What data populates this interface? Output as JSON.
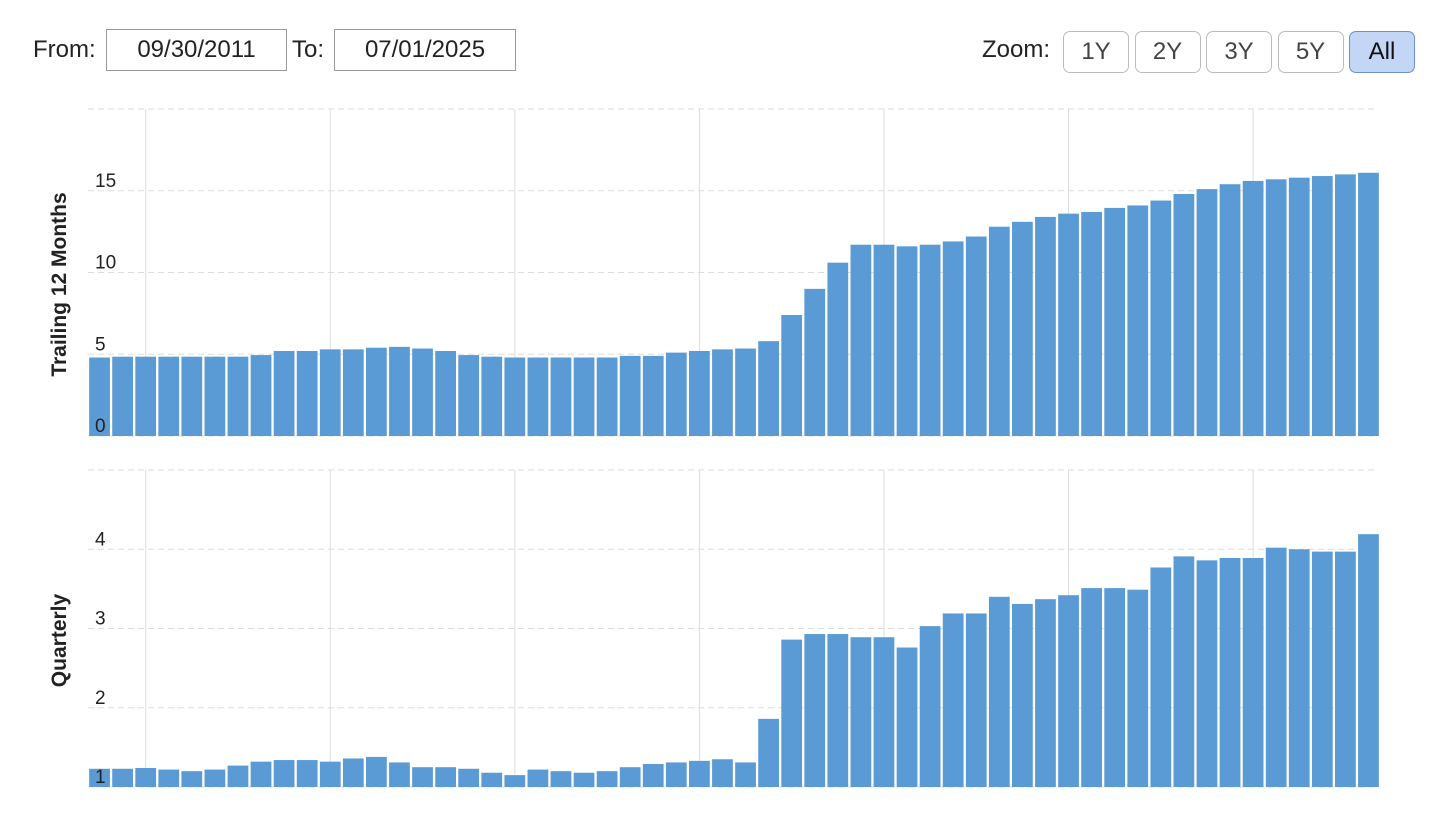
{
  "controls": {
    "from_label": "From:",
    "from_value": "09/30/2011",
    "to_label": "To:",
    "to_value": "07/01/2025",
    "zoom_label": "Zoom:",
    "zoom_buttons": [
      "1Y",
      "2Y",
      "3Y",
      "5Y",
      "All"
    ]
  },
  "chart_data": [
    {
      "type": "bar",
      "ylabel": "Trailing 12 Months",
      "color": "#5b9bd5",
      "grid": true,
      "categories": [
        null,
        null,
        null,
        null,
        null,
        null,
        null,
        null,
        null,
        null,
        null,
        null,
        null,
        null,
        null,
        null,
        null,
        null,
        null,
        null,
        null,
        null,
        null,
        null,
        null,
        null,
        null,
        null,
        null,
        null,
        null,
        null,
        null,
        null,
        null,
        null,
        null,
        null,
        null,
        null,
        null,
        null,
        null,
        null,
        null,
        null,
        null,
        null,
        null,
        null,
        null,
        null,
        null,
        null,
        null,
        null
      ],
      "values": [
        4.8,
        4.85,
        4.85,
        4.85,
        4.85,
        4.85,
        4.85,
        4.95,
        5.2,
        5.2,
        5.3,
        5.3,
        5.4,
        5.45,
        5.35,
        5.2,
        4.95,
        4.85,
        4.8,
        4.8,
        4.8,
        4.8,
        4.8,
        4.9,
        4.9,
        5.1,
        5.2,
        5.3,
        5.35,
        5.8,
        7.4,
        9.0,
        10.6,
        11.7,
        11.7,
        11.6,
        11.7,
        11.9,
        12.2,
        12.8,
        13.1,
        13.4,
        13.6,
        13.7,
        13.95,
        14.1,
        14.4,
        14.8,
        15.1,
        15.4,
        15.6,
        15.7,
        15.8,
        15.9,
        16.0,
        16.1
      ],
      "ylim": [
        0,
        20
      ],
      "yticks": [
        0,
        5,
        10,
        15
      ]
    },
    {
      "type": "bar",
      "ylabel": "Quarterly",
      "color": "#5b9bd5",
      "grid": true,
      "categories": [
        null,
        null,
        null,
        null,
        null,
        null,
        null,
        null,
        null,
        null,
        null,
        null,
        null,
        null,
        null,
        null,
        null,
        null,
        null,
        null,
        null,
        null,
        null,
        null,
        null,
        null,
        null,
        null,
        null,
        null,
        null,
        null,
        null,
        null,
        null,
        null,
        null,
        null,
        null,
        null,
        null,
        null,
        null,
        null,
        null,
        null,
        null,
        null,
        null,
        null,
        null,
        null,
        null,
        null,
        null,
        null
      ],
      "values": [
        1.23,
        1.23,
        1.24,
        1.22,
        1.2,
        1.22,
        1.27,
        1.32,
        1.34,
        1.34,
        1.32,
        1.36,
        1.38,
        1.31,
        1.25,
        1.25,
        1.23,
        1.18,
        1.15,
        1.22,
        1.2,
        1.18,
        1.2,
        1.25,
        1.29,
        1.31,
        1.33,
        1.35,
        1.31,
        1.86,
        2.86,
        2.93,
        2.93,
        2.89,
        2.89,
        2.76,
        3.03,
        3.19,
        3.19,
        3.4,
        3.31,
        3.37,
        3.42,
        3.51,
        3.51,
        3.49,
        3.77,
        3.91,
        3.86,
        3.89,
        3.89,
        4.02,
        4.0,
        3.97,
        3.97,
        4.19
      ],
      "ylim": [
        1,
        5
      ],
      "yticks": [
        1,
        2,
        3,
        4
      ]
    }
  ]
}
